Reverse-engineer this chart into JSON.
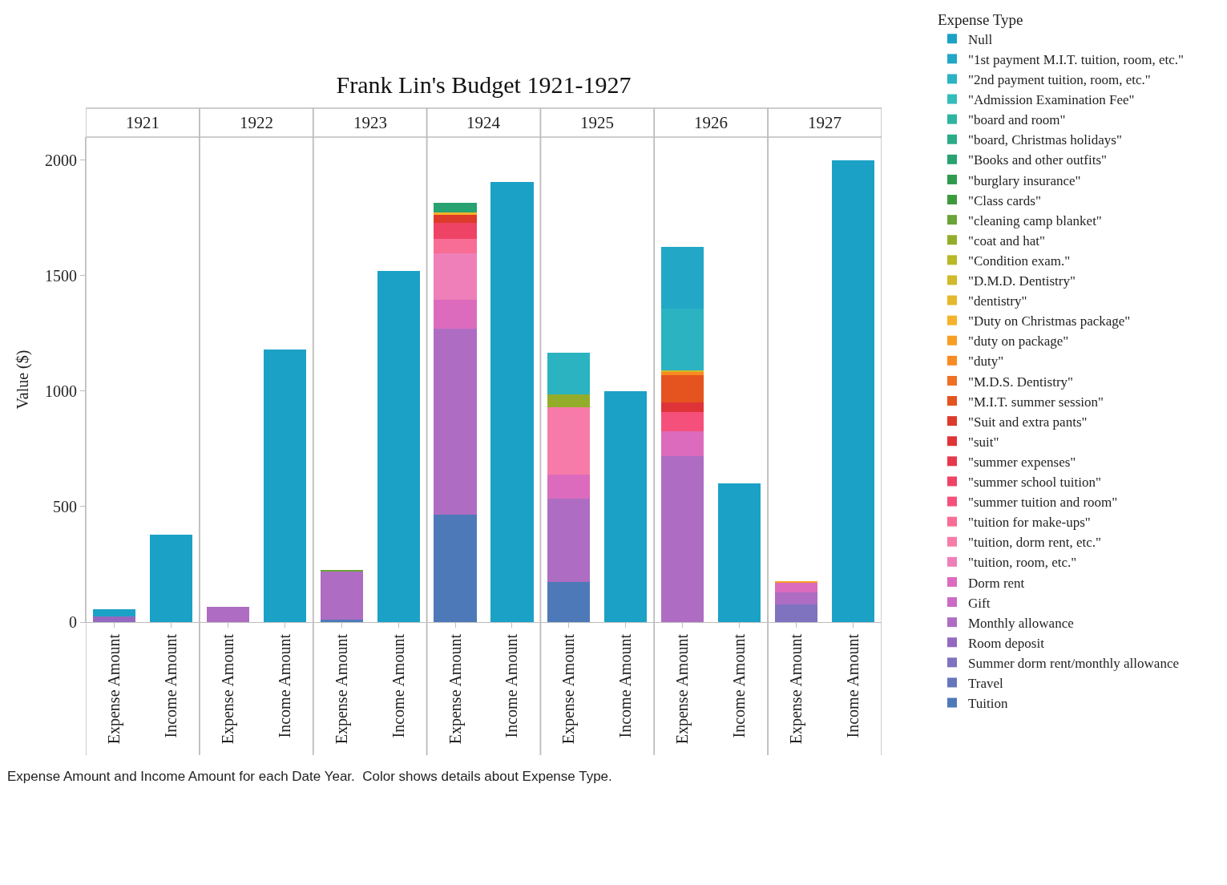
{
  "chart_data": {
    "type": "bar",
    "stacked": true,
    "title": "Frank Lin's Budget 1921-1927",
    "ylabel": "Value ($)",
    "legend_title": "Expense Type",
    "legend": "right",
    "annotations": [
      "1921",
      "1922",
      "1923",
      "1924",
      "1925",
      "1926",
      "1927",
      "Expense Amount and Income Amount for each Date Year.  Color shows details about Expense Type."
    ],
    "categories": [
      "Expense Amount",
      "Income Amount",
      "Expense Amount",
      "Income Amount",
      "Expense Amount",
      "Income Amount",
      "Expense Amount",
      "Income Amount",
      "Expense Amount",
      "Income Amount",
      "Expense Amount",
      "Income Amount",
      "Expense Amount",
      "Income Amount"
    ],
    "ylim": [
      0,
      2100
    ],
    "yticks": [
      0,
      500,
      1000,
      1500,
      2000
    ],
    "series": [
      {
        "name": "Tuition",
        "color": "#4e79b8",
        "values": [
          null,
          null,
          null,
          null,
          10,
          null,
          465,
          null,
          175,
          null,
          null,
          null,
          null,
          null
        ]
      },
      {
        "name": "Travel",
        "color": "#6676bd",
        "values": [
          null,
          null,
          null,
          null,
          null,
          null,
          null,
          null,
          null,
          null,
          null,
          null,
          null,
          null
        ]
      },
      {
        "name": "Summer dorm rent/monthly allowance",
        "color": "#7f72bf",
        "values": [
          null,
          null,
          null,
          null,
          null,
          null,
          null,
          null,
          null,
          null,
          null,
          null,
          75,
          null
        ]
      },
      {
        "name": "Room deposit",
        "color": "#9568c0",
        "values": [
          25,
          null,
          null,
          null,
          null,
          null,
          null,
          null,
          null,
          null,
          null,
          null,
          null,
          null
        ]
      },
      {
        "name": "Monthly allowance",
        "color": "#ae6dc2",
        "values": [
          null,
          null,
          65,
          null,
          210,
          null,
          805,
          null,
          360,
          null,
          720,
          null,
          55,
          null
        ]
      },
      {
        "name": "Gift",
        "color": "#cc6bc4",
        "values": [
          null,
          null,
          null,
          null,
          null,
          null,
          null,
          null,
          null,
          null,
          null,
          null,
          null,
          null
        ]
      },
      {
        "name": "Dorm rent",
        "color": "#dc6bbd",
        "values": [
          null,
          null,
          null,
          null,
          null,
          null,
          125,
          null,
          105,
          null,
          105,
          null,
          40,
          null
        ]
      },
      {
        "name": "\"tuition, room, etc.\"",
        "color": "#ee7fb9",
        "values": [
          null,
          null,
          null,
          null,
          null,
          null,
          200,
          null,
          null,
          null,
          null,
          null,
          null,
          null
        ]
      },
      {
        "name": "\"tuition, dorm rent, etc.\"",
        "color": "#f77ba8",
        "values": [
          null,
          null,
          null,
          null,
          null,
          null,
          null,
          null,
          290,
          null,
          null,
          null,
          null,
          null
        ]
      },
      {
        "name": "\"tuition for make-ups\"",
        "color": "#f76d95",
        "values": [
          null,
          null,
          null,
          null,
          null,
          null,
          65,
          null,
          null,
          null,
          null,
          null,
          null,
          null
        ]
      },
      {
        "name": "\"summer tuition and room\"",
        "color": "#f5507c",
        "values": [
          null,
          null,
          null,
          null,
          null,
          null,
          null,
          null,
          null,
          null,
          85,
          null,
          null,
          null
        ]
      },
      {
        "name": "\"summer school tuition\"",
        "color": "#ef4365",
        "values": [
          null,
          null,
          null,
          null,
          null,
          null,
          70,
          null,
          null,
          null,
          null,
          null,
          null,
          null
        ]
      },
      {
        "name": "\"summer expenses\"",
        "color": "#e6384c",
        "values": [
          null,
          null,
          null,
          null,
          null,
          null,
          null,
          null,
          null,
          null,
          null,
          null,
          null,
          null
        ]
      },
      {
        "name": "\"suit\"",
        "color": "#e03338",
        "values": [
          null,
          null,
          null,
          null,
          null,
          null,
          null,
          null,
          null,
          null,
          40,
          null,
          null,
          null
        ]
      },
      {
        "name": "\"Suit and extra pants\"",
        "color": "#dc3b2a",
        "values": [
          null,
          null,
          null,
          null,
          null,
          null,
          35,
          null,
          null,
          null,
          null,
          null,
          null,
          null
        ]
      },
      {
        "name": "\"M.I.T. summer session\"",
        "color": "#e5531f",
        "values": [
          null,
          null,
          null,
          null,
          null,
          null,
          null,
          null,
          null,
          null,
          120,
          null,
          null,
          null
        ]
      },
      {
        "name": "\"M.D.S. Dentistry\"",
        "color": "#ef7023",
        "values": [
          null,
          null,
          null,
          null,
          null,
          null,
          null,
          null,
          null,
          null,
          null,
          null,
          null,
          null
        ]
      },
      {
        "name": "\"duty\"",
        "color": "#f78b22",
        "values": [
          null,
          null,
          null,
          null,
          null,
          null,
          null,
          null,
          null,
          null,
          14,
          null,
          null,
          null
        ]
      },
      {
        "name": "\"duty on package\"",
        "color": "#f79f24",
        "values": [
          null,
          null,
          null,
          null,
          null,
          null,
          null,
          null,
          null,
          null,
          null,
          null,
          8,
          null
        ]
      },
      {
        "name": "\"Duty on Christmas package\"",
        "color": "#f6b22a",
        "values": [
          null,
          null,
          null,
          null,
          null,
          null,
          10,
          null,
          null,
          null,
          null,
          null,
          null,
          null
        ]
      },
      {
        "name": "\"dentistry\"",
        "color": "#e6b82b",
        "values": [
          null,
          null,
          null,
          null,
          null,
          null,
          null,
          null,
          null,
          null,
          null,
          null,
          null,
          null
        ]
      },
      {
        "name": "\"D.M.D. Dentistry\"",
        "color": "#d0b92a",
        "values": [
          null,
          null,
          null,
          null,
          null,
          null,
          null,
          null,
          null,
          null,
          7,
          null,
          null,
          null
        ]
      },
      {
        "name": "\"Condition exam.\"",
        "color": "#b8b828",
        "values": [
          null,
          null,
          null,
          null,
          null,
          null,
          null,
          null,
          null,
          null,
          null,
          null,
          null,
          null
        ]
      },
      {
        "name": "\"coat and hat\"",
        "color": "#93ad2a",
        "values": [
          null,
          null,
          null,
          null,
          null,
          null,
          null,
          null,
          55,
          null,
          null,
          null,
          null,
          null
        ]
      },
      {
        "name": "\"cleaning camp blanket\"",
        "color": "#6aa436",
        "values": [
          null,
          null,
          null,
          null,
          5,
          null,
          null,
          null,
          null,
          null,
          null,
          null,
          null,
          null
        ]
      },
      {
        "name": "\"Class cards\"",
        "color": "#3c9a3c",
        "values": [
          null,
          null,
          null,
          null,
          null,
          null,
          null,
          null,
          null,
          null,
          null,
          null,
          null,
          null
        ]
      },
      {
        "name": "\"burglary insurance\"",
        "color": "#2e9a4d",
        "values": [
          null,
          null,
          null,
          null,
          null,
          null,
          null,
          null,
          null,
          null,
          null,
          null,
          null,
          null
        ]
      },
      {
        "name": "\"Books and other outfits\"",
        "color": "#27a270",
        "values": [
          null,
          null,
          null,
          null,
          null,
          null,
          40,
          null,
          null,
          null,
          null,
          null,
          null,
          null
        ]
      },
      {
        "name": "\"board, Christmas holidays\"",
        "color": "#2aab89",
        "values": [
          null,
          null,
          null,
          null,
          null,
          null,
          null,
          null,
          null,
          null,
          null,
          null,
          null,
          null
        ]
      },
      {
        "name": "\"board and room\"",
        "color": "#2fb4a0",
        "values": [
          null,
          null,
          null,
          null,
          null,
          null,
          null,
          null,
          null,
          null,
          null,
          null,
          null,
          null
        ]
      },
      {
        "name": "\"Admission Examination Fee\"",
        "color": "#32bcba",
        "values": [
          null,
          null,
          null,
          null,
          null,
          null,
          null,
          null,
          null,
          null,
          null,
          null,
          null,
          null
        ]
      },
      {
        "name": "\"2nd payment tuition, room, etc.\"",
        "color": "#2bb3c2",
        "values": [
          null,
          null,
          null,
          null,
          null,
          null,
          null,
          null,
          180,
          null,
          265,
          null,
          null,
          null
        ]
      },
      {
        "name": "\"1st payment M.I.T. tuition, room, etc.\"",
        "color": "#22a7c6",
        "values": [
          null,
          null,
          null,
          null,
          null,
          null,
          null,
          null,
          null,
          null,
          270,
          null,
          null,
          null
        ]
      },
      {
        "name": "Null",
        "color": "#1ba1c6",
        "values": [
          30,
          380,
          null,
          1180,
          null,
          1520,
          null,
          1905,
          null,
          1000,
          null,
          600,
          null,
          2000
        ]
      }
    ]
  }
}
